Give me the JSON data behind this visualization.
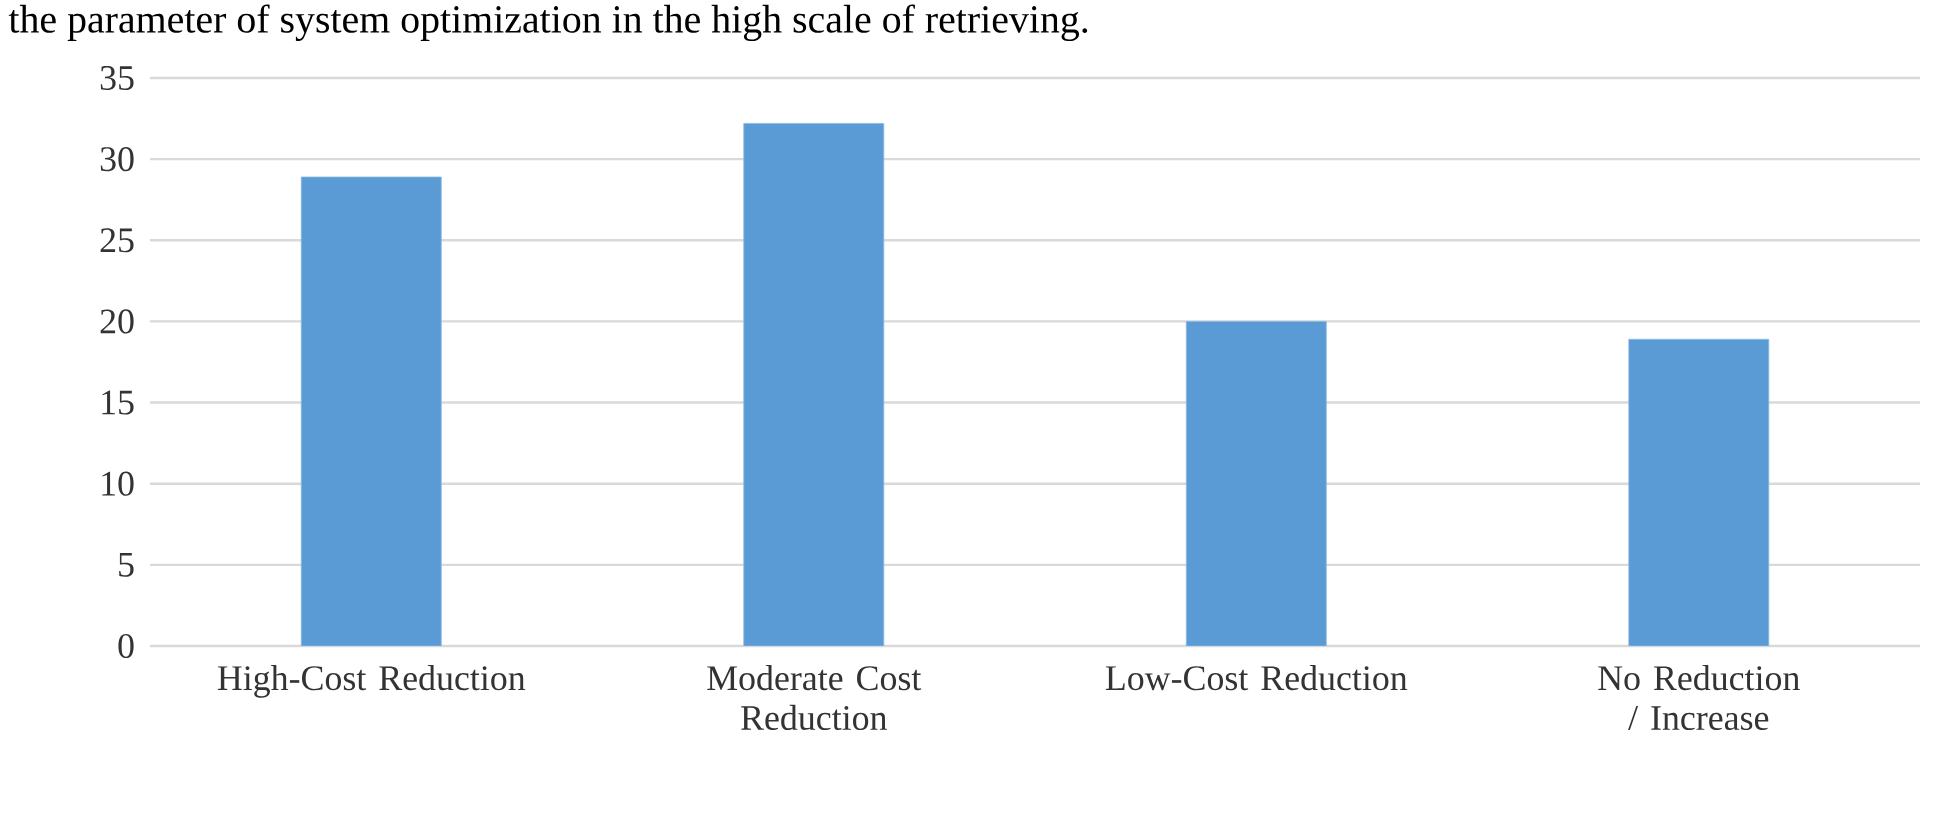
{
  "chart_data": {
    "type": "bar",
    "title": "the parameter of system optimization in the high scale of retrieving.",
    "categories": [
      "High-Cost Reduction",
      "Moderate Cost Reduction",
      "Low-Cost Reduction",
      "No Reduction / Increase"
    ],
    "values": [
      28.9,
      32.2,
      20.0,
      18.9
    ],
    "color": "#5b9bd5",
    "ylim": [
      0,
      35
    ],
    "yticks": [
      0,
      5,
      10,
      15,
      20,
      25,
      30,
      35
    ],
    "grid": "y"
  }
}
